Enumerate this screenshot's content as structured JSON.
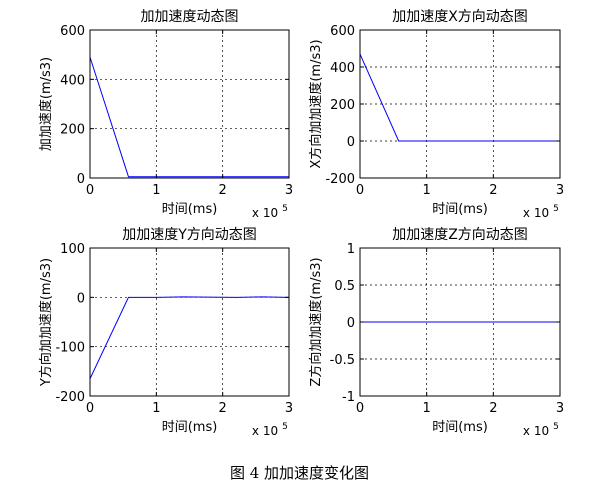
{
  "figure_caption": "图 4  加加速度变化图",
  "chart_data": [
    {
      "type": "line",
      "title": "加加速度动态图",
      "xlabel": "时间(ms)",
      "ylabel": "加加速度(m/s3)",
      "x_exponent": "x 10",
      "x_exponent_power": "5",
      "xlim": [
        0,
        3
      ],
      "ylim": [
        0,
        600
      ],
      "xticks": [
        0,
        1,
        2,
        3
      ],
      "yticks": [
        0,
        200,
        400,
        600
      ],
      "grid": true,
      "color": "#0000ff",
      "series": [
        {
          "x": [
            0,
            0.58,
            1.0,
            2.0,
            3.0
          ],
          "y": [
            490,
            5,
            5,
            5,
            5
          ]
        }
      ]
    },
    {
      "type": "line",
      "title": "加加速度X方向动态图",
      "xlabel": "时间(ms)",
      "ylabel": "X方向加加速度(m/s3)",
      "x_exponent": "x 10",
      "x_exponent_power": "5",
      "xlim": [
        0,
        3
      ],
      "ylim": [
        -200,
        600
      ],
      "xticks": [
        0,
        1,
        2,
        3
      ],
      "yticks": [
        -200,
        0,
        200,
        400,
        600
      ],
      "grid": true,
      "color": "#0000ff",
      "series": [
        {
          "x": [
            0,
            0.58,
            1.0,
            2.0,
            3.0
          ],
          "y": [
            470,
            0,
            0,
            0,
            0
          ]
        }
      ]
    },
    {
      "type": "line",
      "title": "加加速度Y方向动态图",
      "xlabel": "时间(ms)",
      "ylabel": "Y方向加加速度(m/s3)",
      "x_exponent": "x 10",
      "x_exponent_power": "5",
      "xlim": [
        0,
        3
      ],
      "ylim": [
        -200,
        100
      ],
      "xticks": [
        0,
        1,
        2,
        3
      ],
      "yticks": [
        -200,
        -100,
        0,
        100
      ],
      "grid": true,
      "color": "#0000ff",
      "series": [
        {
          "x": [
            0,
            0.58,
            1.0,
            1.4,
            2.2,
            2.6,
            3.0
          ],
          "y": [
            -165,
            0,
            0,
            1,
            0,
            1,
            0
          ]
        }
      ]
    },
    {
      "type": "line",
      "title": "加加速度Z方向动态图",
      "xlabel": "时间(ms)",
      "ylabel": "Z方向加加速度(m/s3)",
      "x_exponent": "x 10",
      "x_exponent_power": "5",
      "xlim": [
        0,
        3
      ],
      "ylim": [
        -1,
        1
      ],
      "xticks": [
        0,
        1,
        2,
        3
      ],
      "yticks": [
        -1,
        -0.5,
        0,
        0.5,
        1
      ],
      "grid": true,
      "color": "#0000ff",
      "series": [
        {
          "x": [
            0,
            3
          ],
          "y": [
            0,
            0
          ]
        }
      ]
    }
  ]
}
